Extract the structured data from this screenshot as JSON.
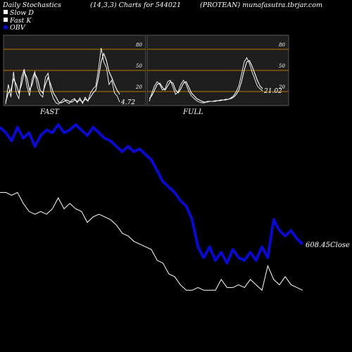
{
  "header": {
    "left": "Daily Stochastics",
    "middle": "(14,3,3) Charts for 544021",
    "right": "(PROTEAN) munafasutra.tbrjar.com"
  },
  "colors": {
    "background": "#000000",
    "panel_bg": "#1e1e1e",
    "ref_line": "#b87400",
    "stoch_line": "#ffffff",
    "obv_line": "#0a0acc",
    "close_line": "#ffffff"
  },
  "chart_data": [
    {
      "type": "line",
      "title": "FAST",
      "yticks": [
        "20",
        "50",
        "80"
      ],
      "ylim": [
        0,
        100
      ],
      "reference_levels": [
        20,
        50,
        80
      ],
      "last_value_label": "4.72",
      "series": [
        {
          "name": "Slow D",
          "values": [
            5,
            18,
            22,
            38,
            30,
            18,
            30,
            48,
            40,
            22,
            30,
            45,
            38,
            22,
            18,
            30,
            40,
            30,
            18,
            12,
            5,
            4,
            6,
            8,
            6,
            5,
            8,
            6,
            8,
            5,
            9,
            7,
            12,
            18,
            22,
            40,
            62,
            74,
            64,
            48,
            40,
            30,
            22,
            16
          ]
        },
        {
          "name": "Fast K",
          "values": [
            2,
            30,
            12,
            48,
            18,
            10,
            40,
            52,
            28,
            14,
            38,
            48,
            26,
            16,
            12,
            40,
            46,
            22,
            10,
            4,
            2,
            6,
            10,
            5,
            3,
            8,
            10,
            4,
            11,
            3,
            12,
            6,
            18,
            24,
            28,
            52,
            82,
            62,
            54,
            30,
            36,
            18,
            14,
            5
          ]
        }
      ]
    },
    {
      "type": "line",
      "title": "FULL",
      "yticks": [
        "20",
        "50",
        "80"
      ],
      "ylim": [
        0,
        100
      ],
      "reference_levels": [
        20,
        50,
        80
      ],
      "last_value_label": "21.02",
      "series": [
        {
          "name": "Slow D",
          "values": [
            10,
            14,
            22,
            30,
            32,
            26,
            22,
            28,
            34,
            32,
            22,
            18,
            24,
            32,
            34,
            26,
            18,
            14,
            10,
            8,
            6,
            5,
            5,
            6,
            6,
            6,
            7,
            7,
            8,
            8,
            9,
            10,
            12,
            16,
            22,
            34,
            50,
            62,
            64,
            56,
            46,
            36,
            28,
            24
          ]
        },
        {
          "name": "Fast K",
          "values": [
            6,
            18,
            28,
            34,
            30,
            22,
            24,
            34,
            36,
            26,
            16,
            20,
            30,
            36,
            30,
            20,
            14,
            10,
            7,
            5,
            4,
            4,
            6,
            6,
            6,
            7,
            7,
            8,
            8,
            9,
            9,
            11,
            14,
            20,
            28,
            44,
            62,
            68,
            60,
            48,
            38,
            28,
            24,
            21
          ]
        }
      ]
    },
    {
      "type": "line",
      "series": [
        {
          "name": "OBV",
          "values": [
            62,
            60,
            57,
            62,
            58,
            60,
            55,
            59,
            61,
            60,
            63,
            60,
            61,
            63,
            61,
            59,
            62,
            60,
            58,
            57,
            55,
            53,
            55,
            53,
            54,
            52,
            50,
            46,
            42,
            40,
            38,
            35,
            33,
            28,
            18,
            14,
            18,
            13,
            16,
            12,
            17,
            14,
            13,
            16,
            13,
            18,
            14,
            28,
            24,
            22,
            24,
            21,
            19
          ]
        },
        {
          "name": "Close",
          "values": [
            38,
            38,
            37,
            38,
            34,
            31,
            30,
            31,
            30,
            32,
            36,
            32,
            34,
            32,
            31,
            27,
            29,
            30,
            29,
            28,
            26,
            23,
            22,
            20,
            19,
            18,
            17,
            13,
            12,
            8,
            7,
            4,
            2,
            2,
            3,
            2,
            2,
            2,
            6,
            3,
            3,
            4,
            3,
            6,
            4,
            2,
            11,
            6,
            4,
            7,
            4,
            3,
            2
          ]
        }
      ],
      "last_value_label": "608.45",
      "last_value_suffix": "Close"
    }
  ]
}
